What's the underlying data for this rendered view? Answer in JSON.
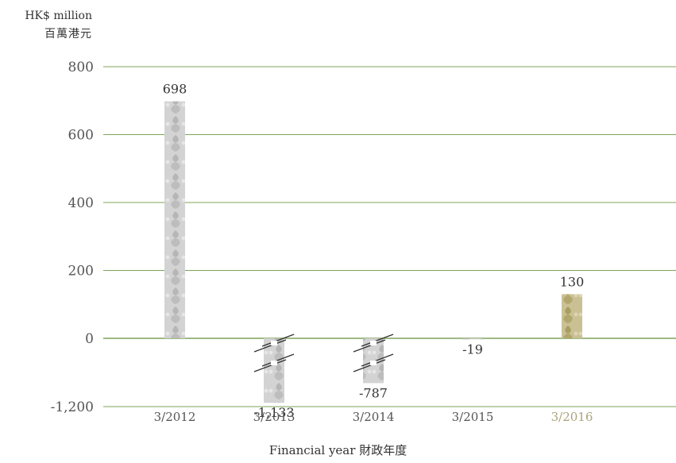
{
  "chart_data": {
    "type": "bar",
    "title": "",
    "unit_label": [
      "HK$ million",
      "百萬港元"
    ],
    "xlabel": "Financial year 財政年度",
    "ylabel": "",
    "ylim": [
      -1200,
      800
    ],
    "yticks": [
      800,
      600,
      400,
      200,
      0,
      -1200
    ],
    "ytick_labels": [
      "800",
      "600",
      "400",
      "200",
      "0",
      "-1,200"
    ],
    "axis_break": true,
    "grid": true,
    "categories": [
      "3/2012",
      "3/2013",
      "3/2014",
      "3/2015",
      "3/2016"
    ],
    "values": [
      698,
      -1133,
      -787,
      -19,
      130
    ],
    "value_labels": [
      "698",
      "-1,133",
      "-787",
      "-19",
      "130"
    ],
    "highlight_category": "3/2016",
    "colors": {
      "grid": "#7fa35a",
      "bar": "#cfcfcf",
      "bar_pattern": "#b4b4b4",
      "highlight_bar": "#c2b98a",
      "highlight_pattern": "#a89c5e",
      "highlight_label": "#a9a37a",
      "tick_label": "#555555",
      "text": "#333333"
    }
  }
}
